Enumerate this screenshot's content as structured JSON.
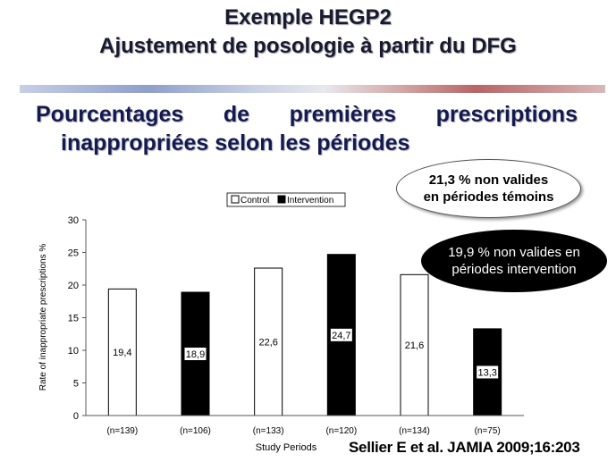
{
  "header": {
    "title_line1": "Exemple HEGP2",
    "title_line2": "Ajustement de posologie à partir du DFG"
  },
  "subtitle": {
    "words_line1": [
      "Pourcentages",
      "de",
      "premières",
      "prescriptions"
    ],
    "line2": "inappropriées selon les périodes"
  },
  "callouts": {
    "control": [
      "21,3 % non valides",
      "en périodes témoins"
    ],
    "intervention": [
      "19,9 % non valides en",
      "périodes intervention"
    ]
  },
  "citation": "Sellier E et al. JAMIA 2009;16:203",
  "chart_data": {
    "type": "bar",
    "categories": [
      "(n=139)",
      "(n=106)",
      "(n=133)",
      "(n=120)",
      "(n=134)",
      "(n=75)"
    ],
    "values": [
      19.4,
      18.9,
      22.6,
      24.7,
      21.6,
      13.3
    ],
    "value_labels": [
      "19,4",
      "18,9",
      "22,6",
      "24,7",
      "21,6",
      "13,3"
    ],
    "bar_series": [
      "Control",
      "Intervention",
      "Control",
      "Intervention",
      "Control",
      "Intervention"
    ],
    "legend": [
      {
        "name": "Control",
        "color": "#ffffff"
      },
      {
        "name": "Intervention",
        "color": "#000000"
      }
    ],
    "xlabel": "Study Periods",
    "ylabel": "Rate of inappropriate prescriptions %",
    "ylim": [
      0,
      30
    ],
    "yticks": [
      0,
      5,
      10,
      15,
      20,
      25,
      30
    ],
    "grid": false,
    "legend_position": "top"
  }
}
